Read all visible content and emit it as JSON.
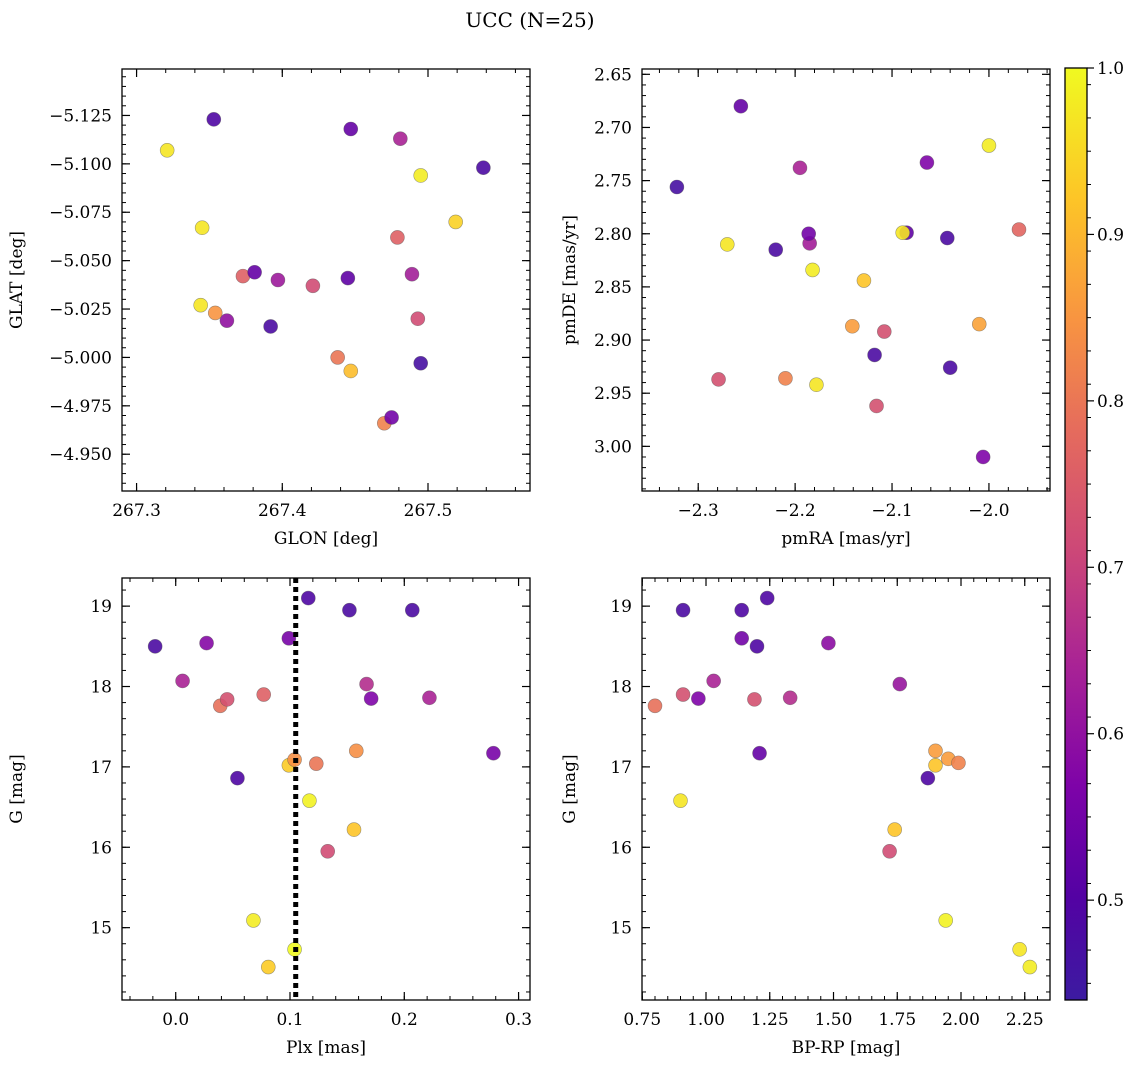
{
  "figure": {
    "title": "UCC (N=25)"
  },
  "colorbar": {
    "colormap": "plasma",
    "range": [
      0.44,
      1.0
    ],
    "ticks": [
      0.5,
      0.6,
      0.7,
      0.8,
      0.9,
      1.0
    ],
    "tick_labels": [
      "0.5",
      "0.6",
      "0.7",
      "0.8",
      "0.9",
      "1.0"
    ]
  },
  "chart_data": [
    {
      "type": "scatter",
      "id": "sky",
      "title": "",
      "xlabel": "GLON [deg]",
      "ylabel": "GLAT [deg]",
      "xlim": [
        267.29,
        267.57
      ],
      "ylim": [
        -5.149,
        -4.931
      ],
      "xticks": [
        267.3,
        267.4,
        267.5
      ],
      "xtick_labels": [
        "267.3",
        "267.4",
        "267.5"
      ],
      "yticks": [
        -4.95,
        -4.975,
        -5.0,
        -5.025,
        -5.05,
        -5.075,
        -5.1,
        -5.125
      ],
      "ytick_labels": [
        "−4.950",
        "−4.975",
        "−5.000",
        "−5.025",
        "−5.050",
        "−5.075",
        "−5.100",
        "−5.125"
      ],
      "points": [
        {
          "x": 267.47,
          "y": -4.966,
          "c": 0.82
        },
        {
          "x": 267.475,
          "y": -4.969,
          "c": 0.55
        },
        {
          "x": 267.447,
          "y": -4.993,
          "c": 0.91
        },
        {
          "x": 267.438,
          "y": -5.0,
          "c": 0.8
        },
        {
          "x": 267.495,
          "y": -4.997,
          "c": 0.47
        },
        {
          "x": 267.392,
          "y": -5.016,
          "c": 0.48
        },
        {
          "x": 267.362,
          "y": -5.019,
          "c": 0.6
        },
        {
          "x": 267.354,
          "y": -5.023,
          "c": 0.85
        },
        {
          "x": 267.344,
          "y": -5.027,
          "c": 0.97
        },
        {
          "x": 267.493,
          "y": -5.02,
          "c": 0.72
        },
        {
          "x": 267.421,
          "y": -5.037,
          "c": 0.72
        },
        {
          "x": 267.397,
          "y": -5.04,
          "c": 0.62
        },
        {
          "x": 267.445,
          "y": -5.041,
          "c": 0.52
        },
        {
          "x": 267.373,
          "y": -5.042,
          "c": 0.76
        },
        {
          "x": 267.381,
          "y": -5.044,
          "c": 0.53
        },
        {
          "x": 267.489,
          "y": -5.043,
          "c": 0.63
        },
        {
          "x": 267.479,
          "y": -5.062,
          "c": 0.76
        },
        {
          "x": 267.345,
          "y": -5.067,
          "c": 0.97
        },
        {
          "x": 267.519,
          "y": -5.07,
          "c": 0.94
        },
        {
          "x": 267.495,
          "y": -5.094,
          "c": 0.98
        },
        {
          "x": 267.538,
          "y": -5.098,
          "c": 0.48
        },
        {
          "x": 267.321,
          "y": -5.107,
          "c": 0.97
        },
        {
          "x": 267.481,
          "y": -5.113,
          "c": 0.64
        },
        {
          "x": 267.447,
          "y": -5.118,
          "c": 0.53
        },
        {
          "x": 267.353,
          "y": -5.123,
          "c": 0.49
        }
      ]
    },
    {
      "type": "scatter",
      "id": "pm",
      "title": "",
      "xlabel": "pmRA [mas/yr]",
      "ylabel": "pmDE [mas/yr]",
      "xlim": [
        -2.358,
        -1.937
      ],
      "ylim": [
        2.645,
        3.042
      ],
      "xticks": [
        -2.3,
        -2.2,
        -2.1,
        -2.0
      ],
      "xtick_labels": [
        "−2.3",
        "−2.2",
        "−2.1",
        "−2.0"
      ],
      "yticks": [
        2.65,
        2.7,
        2.75,
        2.8,
        2.85,
        2.9,
        2.95,
        3.0
      ],
      "ytick_labels": [
        "2.65",
        "2.70",
        "2.75",
        "2.80",
        "2.85",
        "2.90",
        "2.95",
        "3.00"
      ],
      "points": [
        {
          "x": -2.006,
          "y": 3.01,
          "c": 0.57
        },
        {
          "x": -2.116,
          "y": 2.962,
          "c": 0.73
        },
        {
          "x": -2.279,
          "y": 2.937,
          "c": 0.73
        },
        {
          "x": -2.21,
          "y": 2.936,
          "c": 0.82
        },
        {
          "x": -2.178,
          "y": 2.942,
          "c": 0.97
        },
        {
          "x": -2.04,
          "y": 2.926,
          "c": 0.48
        },
        {
          "x": -2.118,
          "y": 2.914,
          "c": 0.48
        },
        {
          "x": -2.141,
          "y": 2.887,
          "c": 0.86
        },
        {
          "x": -2.108,
          "y": 2.892,
          "c": 0.73
        },
        {
          "x": -2.01,
          "y": 2.885,
          "c": 0.87
        },
        {
          "x": -2.129,
          "y": 2.844,
          "c": 0.92
        },
        {
          "x": -2.182,
          "y": 2.834,
          "c": 0.98
        },
        {
          "x": -2.22,
          "y": 2.815,
          "c": 0.48
        },
        {
          "x": -2.27,
          "y": 2.81,
          "c": 0.97
        },
        {
          "x": -2.185,
          "y": 2.809,
          "c": 0.63
        },
        {
          "x": -2.186,
          "y": 2.8,
          "c": 0.55
        },
        {
          "x": -2.085,
          "y": 2.799,
          "c": 0.52
        },
        {
          "x": -2.089,
          "y": 2.799,
          "c": 0.97
        },
        {
          "x": -2.043,
          "y": 2.804,
          "c": 0.48
        },
        {
          "x": -1.969,
          "y": 2.796,
          "c": 0.77
        },
        {
          "x": -2.322,
          "y": 2.756,
          "c": 0.47
        },
        {
          "x": -2.195,
          "y": 2.738,
          "c": 0.64
        },
        {
          "x": -2.064,
          "y": 2.733,
          "c": 0.57
        },
        {
          "x": -2.0,
          "y": 2.717,
          "c": 0.98
        },
        {
          "x": -2.256,
          "y": 2.68,
          "c": 0.53
        }
      ]
    },
    {
      "type": "scatter",
      "id": "plx",
      "title": "",
      "xlabel": "Plx [mas]",
      "ylabel": "G [mag]",
      "xlim": [
        -0.047,
        0.31
      ],
      "ylim": [
        19.35,
        14.1
      ],
      "xticks": [
        0.0,
        0.1,
        0.2,
        0.3
      ],
      "xtick_labels": [
        "0.0",
        "0.1",
        "0.2",
        "0.3"
      ],
      "yticks": [
        15,
        16,
        17,
        18,
        19
      ],
      "ytick_labels": [
        "15",
        "16",
        "17",
        "18",
        "19"
      ],
      "vline": {
        "x": 0.105,
        "style": "dotted"
      },
      "points": [
        {
          "x": 0.081,
          "y": 14.51,
          "c": 0.93
        },
        {
          "x": 0.104,
          "y": 14.73,
          "c": 1.0
        },
        {
          "x": 0.068,
          "y": 15.09,
          "c": 0.98
        },
        {
          "x": 0.133,
          "y": 15.95,
          "c": 0.72
        },
        {
          "x": 0.156,
          "y": 16.22,
          "c": 0.92
        },
        {
          "x": 0.117,
          "y": 16.58,
          "c": 0.99
        },
        {
          "x": 0.054,
          "y": 16.86,
          "c": 0.49
        },
        {
          "x": 0.099,
          "y": 17.02,
          "c": 0.93
        },
        {
          "x": 0.104,
          "y": 17.09,
          "c": 0.84
        },
        {
          "x": 0.123,
          "y": 17.04,
          "c": 0.8
        },
        {
          "x": 0.158,
          "y": 17.2,
          "c": 0.84
        },
        {
          "x": 0.278,
          "y": 17.17,
          "c": 0.56
        },
        {
          "x": 0.039,
          "y": 17.76,
          "c": 0.79
        },
        {
          "x": 0.045,
          "y": 17.84,
          "c": 0.73
        },
        {
          "x": 0.077,
          "y": 17.9,
          "c": 0.76
        },
        {
          "x": 0.171,
          "y": 17.85,
          "c": 0.57
        },
        {
          "x": 0.222,
          "y": 17.86,
          "c": 0.64
        },
        {
          "x": 0.167,
          "y": 18.03,
          "c": 0.66
        },
        {
          "x": 0.006,
          "y": 18.07,
          "c": 0.64
        },
        {
          "x": -0.018,
          "y": 18.5,
          "c": 0.48
        },
        {
          "x": 0.027,
          "y": 18.54,
          "c": 0.58
        },
        {
          "x": 0.099,
          "y": 18.6,
          "c": 0.56
        },
        {
          "x": 0.152,
          "y": 18.95,
          "c": 0.48
        },
        {
          "x": 0.207,
          "y": 18.95,
          "c": 0.48
        },
        {
          "x": 0.116,
          "y": 19.1,
          "c": 0.49
        }
      ]
    },
    {
      "type": "scatter",
      "id": "cmd",
      "title": "",
      "xlabel": "BP-RP [mag]",
      "ylabel": "G [mag]",
      "xlim": [
        0.749,
        2.349
      ],
      "ylim": [
        19.35,
        14.1
      ],
      "xticks": [
        0.75,
        1.0,
        1.25,
        1.5,
        1.75,
        2.0,
        2.25
      ],
      "xtick_labels": [
        "0.75",
        "1.00",
        "1.25",
        "1.50",
        "1.75",
        "2.00",
        "2.25"
      ],
      "yticks": [
        15,
        16,
        17,
        18,
        19
      ],
      "ytick_labels": [
        "15",
        "16",
        "17",
        "18",
        "19"
      ],
      "points": [
        {
          "x": 2.27,
          "y": 14.51,
          "c": 0.98
        },
        {
          "x": 2.23,
          "y": 14.73,
          "c": 0.97
        },
        {
          "x": 1.94,
          "y": 15.09,
          "c": 0.99
        },
        {
          "x": 1.72,
          "y": 15.95,
          "c": 0.72
        },
        {
          "x": 1.74,
          "y": 16.22,
          "c": 0.92
        },
        {
          "x": 0.9,
          "y": 16.58,
          "c": 0.97
        },
        {
          "x": 1.87,
          "y": 16.86,
          "c": 0.49
        },
        {
          "x": 1.9,
          "y": 17.02,
          "c": 0.92
        },
        {
          "x": 1.95,
          "y": 17.1,
          "c": 0.86
        },
        {
          "x": 1.99,
          "y": 17.05,
          "c": 0.82
        },
        {
          "x": 1.9,
          "y": 17.2,
          "c": 0.86
        },
        {
          "x": 1.21,
          "y": 17.17,
          "c": 0.53
        },
        {
          "x": 0.8,
          "y": 17.76,
          "c": 0.79
        },
        {
          "x": 0.91,
          "y": 17.9,
          "c": 0.73
        },
        {
          "x": 0.97,
          "y": 17.85,
          "c": 0.57
        },
        {
          "x": 1.19,
          "y": 17.84,
          "c": 0.73
        },
        {
          "x": 1.33,
          "y": 17.86,
          "c": 0.66
        },
        {
          "x": 1.76,
          "y": 18.03,
          "c": 0.61
        },
        {
          "x": 1.03,
          "y": 18.07,
          "c": 0.64
        },
        {
          "x": 1.2,
          "y": 18.5,
          "c": 0.49
        },
        {
          "x": 1.48,
          "y": 18.54,
          "c": 0.59
        },
        {
          "x": 1.14,
          "y": 18.6,
          "c": 0.55
        },
        {
          "x": 0.91,
          "y": 18.95,
          "c": 0.48
        },
        {
          "x": 1.14,
          "y": 18.95,
          "c": 0.49
        },
        {
          "x": 1.24,
          "y": 19.1,
          "c": 0.49
        }
      ]
    }
  ]
}
